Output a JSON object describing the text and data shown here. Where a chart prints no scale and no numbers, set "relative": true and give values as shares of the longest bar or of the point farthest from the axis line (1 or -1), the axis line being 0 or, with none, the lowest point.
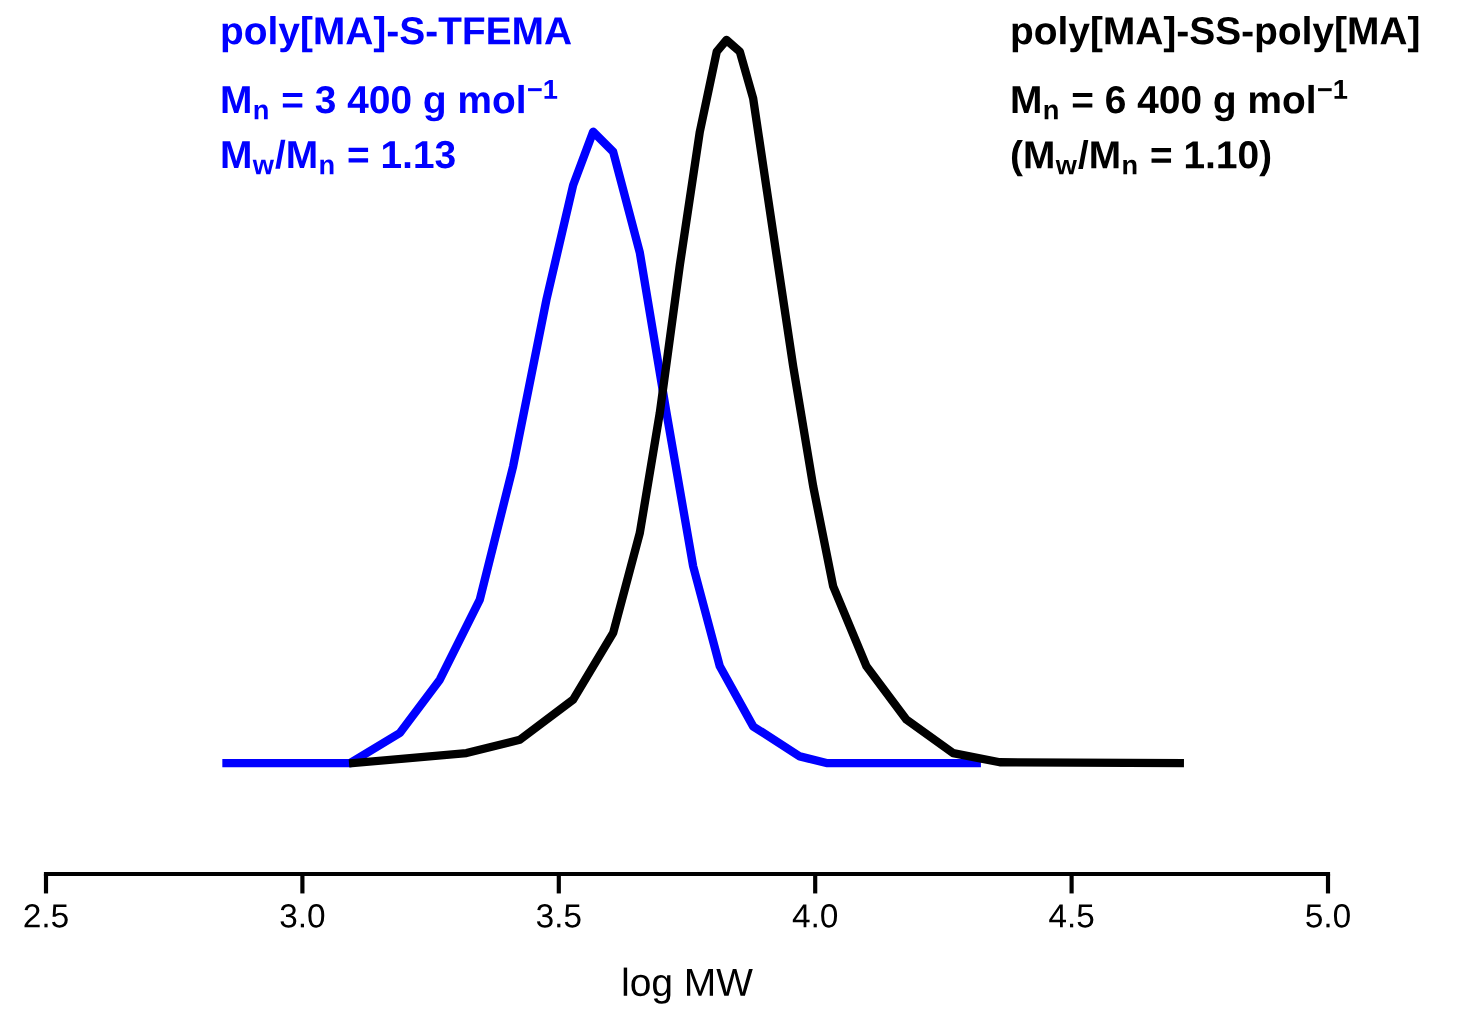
{
  "chart_data": {
    "type": "line",
    "relative": true,
    "xlabel": "log MW",
    "xlim": [
      2.5,
      5.0
    ],
    "xticks": [
      2.5,
      {
        "value": 3,
        "label": "3.0"
      },
      3.5,
      {
        "value": 4,
        "label": "4.0"
      },
      4.5,
      {
        "value": 5,
        "label": "5.0"
      }
    ],
    "tick_labels": "x",
    "grid": false,
    "legend": false,
    "marker": "none",
    "line_style": "solid",
    "series": [
      {
        "name": "poly[MA]-S-TFEMA",
        "color": "#0000ff",
        "x": [
          2.852,
          3.093,
          3.19,
          3.268,
          3.346,
          3.411,
          3.476,
          3.528,
          3.567,
          3.606,
          3.658,
          3.71,
          3.762,
          3.814,
          3.879,
          3.97,
          4.022,
          4.315
        ],
        "values": [
          0.133,
          0.133,
          0.169,
          0.233,
          0.329,
          0.489,
          0.689,
          0.826,
          0.89,
          0.866,
          0.745,
          0.553,
          0.369,
          0.249,
          0.177,
          0.141,
          0.133,
          0.133
        ]
      },
      {
        "name": "poly[MA]-SS-poly[MA]",
        "color": "#000000",
        "x": [
          3.099,
          3.32,
          3.424,
          3.528,
          3.606,
          3.658,
          3.697,
          3.736,
          3.775,
          3.808,
          3.827,
          3.853,
          3.879,
          3.918,
          3.957,
          3.996,
          4.035,
          4.1,
          4.178,
          4.269,
          4.36,
          4.711
        ],
        "values": [
          0.133,
          0.145,
          0.161,
          0.209,
          0.289,
          0.409,
          0.553,
          0.73,
          0.89,
          0.986,
          1.0,
          0.986,
          0.93,
          0.769,
          0.609,
          0.465,
          0.345,
          0.249,
          0.185,
          0.145,
          0.134,
          0.133
        ]
      }
    ],
    "annotations": [
      "M$_{n}$ = 3 400 g mol$^{−1}$",
      "M$_{w}$/M$_{n}$ = 1.13",
      "M$_{n}$ = 6 400 g mol$^{−1}$",
      "(M$_{w}$/M$_{n}$ = 1.10)"
    ]
  }
}
